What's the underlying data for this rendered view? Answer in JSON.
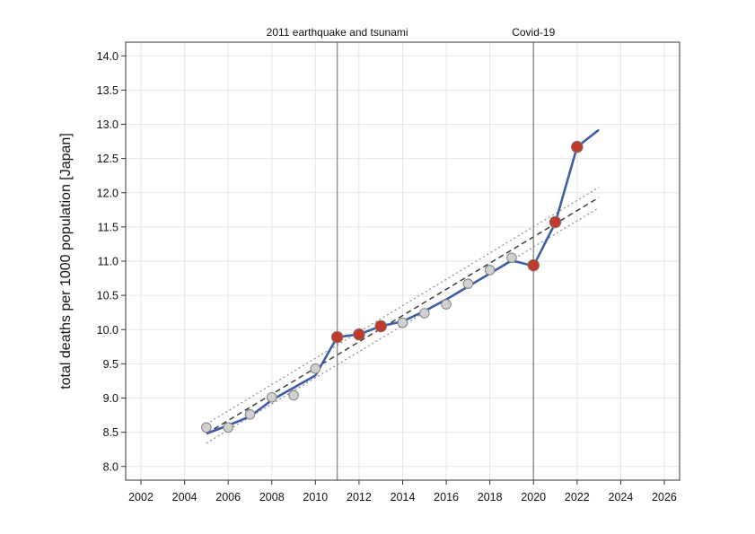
{
  "chart_data": {
    "type": "line",
    "title": "",
    "xlabel": "",
    "ylabel": "total deaths per 1000 population [Japan]",
    "xlim": [
      2001.3,
      2026.7
    ],
    "ylim": [
      7.8,
      14.2
    ],
    "xticks": [
      2002,
      2004,
      2006,
      2008,
      2010,
      2012,
      2014,
      2016,
      2018,
      2020,
      2022,
      2024,
      2026
    ],
    "yticks": [
      8.0,
      8.5,
      9.0,
      9.5,
      10.0,
      10.5,
      11.0,
      11.5,
      12.0,
      12.5,
      13.0,
      13.5,
      14.0
    ],
    "grid": true,
    "legend": "none",
    "colors": {
      "line": "#3f5ea8",
      "trend": "#333333",
      "band": "#8a8a8a",
      "marker_normal": "#d0d0d0",
      "marker_excess": "#c0392b",
      "vline": "#8a8a8a",
      "grid": "#e6e6e6"
    },
    "series": [
      {
        "kind": "observed_line",
        "x": [
          2005,
          2006,
          2007,
          2008,
          2009,
          2010,
          2011,
          2012,
          2013,
          2014,
          2015,
          2016,
          2017,
          2018,
          2019,
          2020,
          2021,
          2022,
          2023
        ],
        "values": [
          8.48,
          8.6,
          8.73,
          8.97,
          9.15,
          9.33,
          9.89,
          9.93,
          10.05,
          10.12,
          10.27,
          10.44,
          10.63,
          10.82,
          11.01,
          10.93,
          11.56,
          12.67,
          12.92
        ]
      },
      {
        "kind": "markers",
        "x": [
          2005,
          2006,
          2007,
          2008,
          2009,
          2010,
          2011,
          2012,
          2013,
          2014,
          2015,
          2016,
          2017,
          2018,
          2019,
          2020,
          2021,
          2022
        ],
        "values": [
          8.57,
          8.57,
          8.76,
          9.01,
          9.04,
          9.43,
          9.89,
          9.93,
          10.05,
          10.1,
          10.24,
          10.37,
          10.67,
          10.87,
          11.05,
          10.94,
          11.57,
          12.67
        ],
        "excess": [
          false,
          false,
          false,
          false,
          false,
          false,
          true,
          true,
          true,
          false,
          false,
          false,
          false,
          false,
          false,
          true,
          true,
          true
        ]
      },
      {
        "kind": "trend",
        "x": [
          2005,
          2023
        ],
        "values": [
          8.48,
          11.93
        ]
      },
      {
        "kind": "band_upper",
        "x": [
          2005,
          2023
        ],
        "values": [
          8.62,
          12.08
        ]
      },
      {
        "kind": "band_lower",
        "x": [
          2005,
          2023
        ],
        "values": [
          8.34,
          11.78
        ]
      }
    ],
    "annotations": [
      {
        "x": 2011,
        "label": "2011 earthquake and tsunami"
      },
      {
        "x": 2020,
        "label": "Covid-19"
      }
    ]
  }
}
